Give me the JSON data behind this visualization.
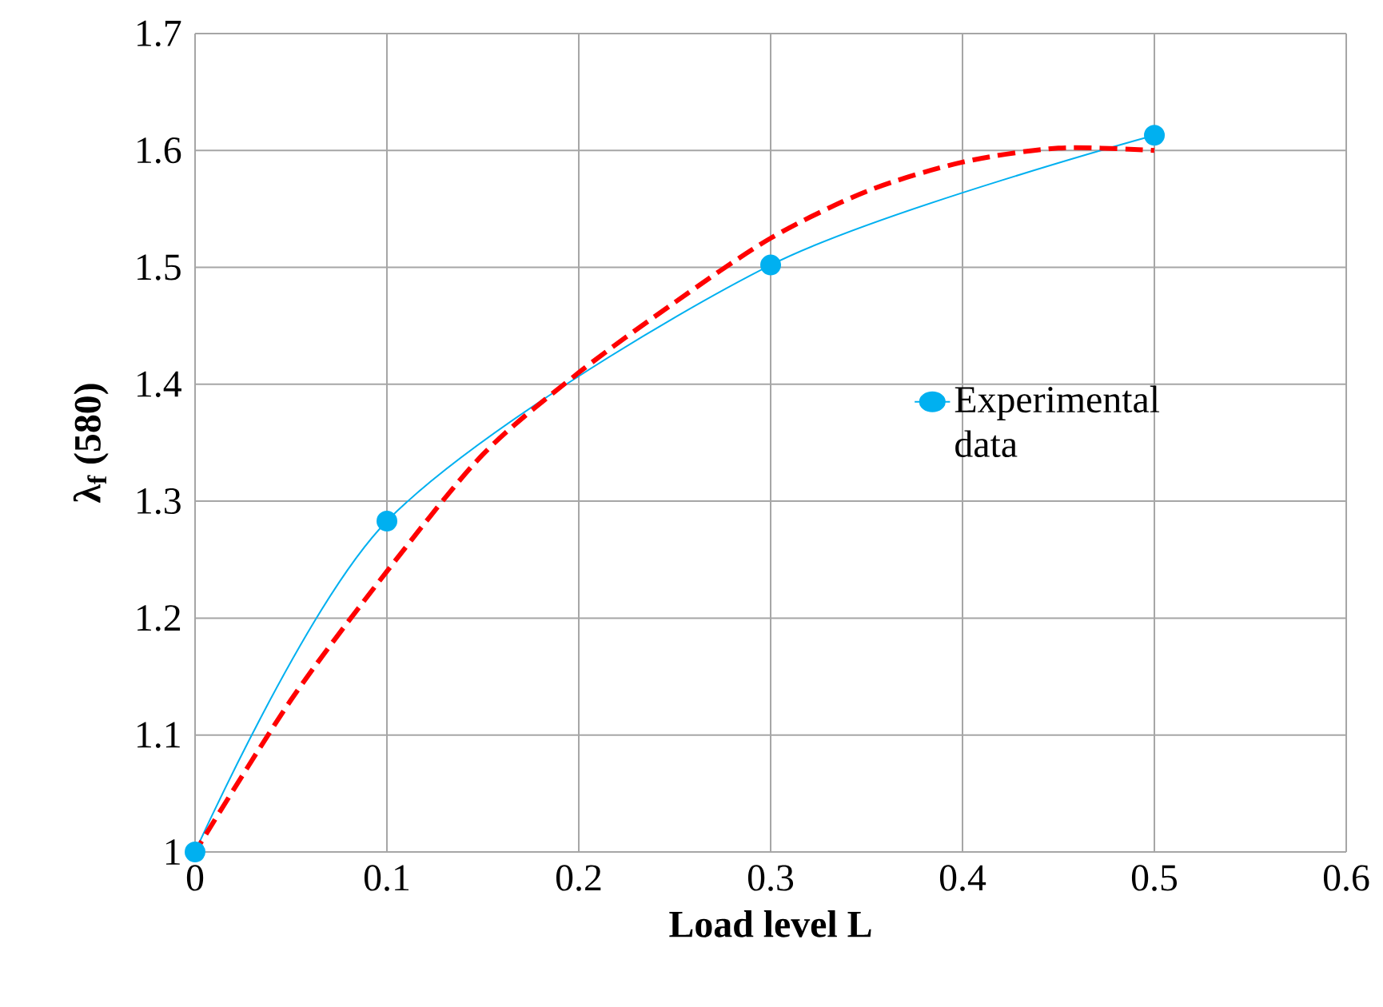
{
  "chart_data": {
    "type": "line",
    "xlabel": "Load level L",
    "ylabel": "**λ$_{f}$ (580)**",
    "xlim": [
      0,
      0.6
    ],
    "ylim": [
      1,
      1.7
    ],
    "xticks": [
      0,
      0.1,
      0.2,
      0.3,
      0.4,
      0.5,
      0.6
    ],
    "yticks": [
      1,
      1.1,
      1.2,
      1.3,
      1.4,
      1.5,
      1.6,
      1.7
    ],
    "grid": true,
    "legend": "right",
    "series": [
      {
        "name": "Experimental data",
        "color": "#00b0f0",
        "x": [
          0,
          0.1,
          0.3,
          0.5
        ],
        "values": [
          1,
          1.283,
          1.502,
          1.613
        ],
        "marker": "circle",
        "line_style": "solid"
      },
      {
        "color": "#ff0000",
        "x": [
          0,
          0.05,
          0.1,
          0.15,
          0.2,
          0.25,
          0.3,
          0.35,
          0.4,
          0.45,
          0.5
        ],
        "values": [
          1,
          1.13,
          1.24,
          1.34,
          1.41,
          1.47,
          1.525,
          1.565,
          1.59,
          1.602,
          1.6
        ],
        "marker": "none",
        "line_style": "dashed"
      }
    ]
  }
}
